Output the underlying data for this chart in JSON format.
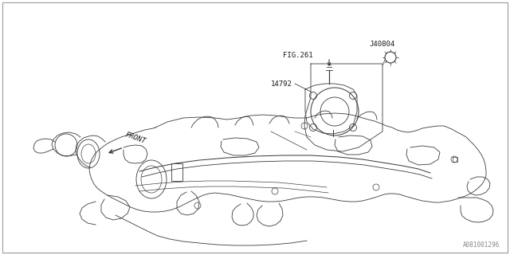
{
  "bg_color": "#ffffff",
  "line_color": "#3a3a3a",
  "text_color": "#1a1a1a",
  "watermark": "A081001296",
  "border_color": "#999999",
  "label_J40804": "J40804",
  "label_FIG261": "FIG.261",
  "label_14792": "14792",
  "label_FRONT": "FRONT",
  "figsize": [
    6.4,
    3.2
  ],
  "dpi": 100
}
